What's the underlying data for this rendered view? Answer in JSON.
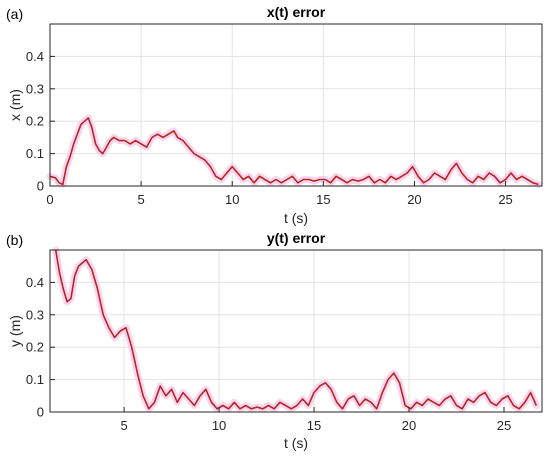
{
  "chart_data": [
    {
      "type": "line",
      "panel_label": "(a)",
      "title": "x(t) error",
      "xlabel": "t (s)",
      "ylabel": "x (m)",
      "xlim": [
        0,
        27
      ],
      "ylim": [
        0,
        0.5
      ],
      "xticks": [
        0,
        5,
        10,
        15,
        20,
        25
      ],
      "yticks": [
        0,
        0.1,
        0.2,
        0.3,
        0.4
      ],
      "ytick_labels": [
        "0",
        "0.1",
        "0.2",
        "0.3",
        "0.4"
      ],
      "grid": true,
      "colors": {
        "line": "#b5281f",
        "halo": "#f7c9ec"
      },
      "series": [
        {
          "x": [
            0,
            0.3,
            0.5,
            0.7,
            0.9,
            1.1,
            1.3,
            1.5,
            1.7,
            1.9,
            2.1,
            2.3,
            2.5,
            2.7,
            2.9,
            3.1,
            3.3,
            3.5,
            3.8,
            4.1,
            4.4,
            4.7,
            5.0,
            5.3,
            5.6,
            5.9,
            6.2,
            6.5,
            6.8,
            7.0,
            7.3,
            7.6,
            7.9,
            8.2,
            8.5,
            8.8,
            9.1,
            9.4,
            9.7,
            10.0,
            10.3,
            10.6,
            10.9,
            11.2,
            11.5,
            11.8,
            12.1,
            12.4,
            12.7,
            13.0,
            13.3,
            13.6,
            13.9,
            14.2,
            14.5,
            14.8,
            15.1,
            15.4,
            15.7,
            16.0,
            16.3,
            16.6,
            16.9,
            17.2,
            17.5,
            17.8,
            18.1,
            18.4,
            18.7,
            19.0,
            19.3,
            19.6,
            19.9,
            20.2,
            20.5,
            20.8,
            21.1,
            21.4,
            21.7,
            22.0,
            22.3,
            22.6,
            22.9,
            23.2,
            23.5,
            23.8,
            24.1,
            24.4,
            24.7,
            25.0,
            25.3,
            25.6,
            25.9,
            26.2,
            26.5,
            26.8
          ],
          "values": [
            0.03,
            0.025,
            0.01,
            0.005,
            0.06,
            0.09,
            0.13,
            0.16,
            0.19,
            0.2,
            0.21,
            0.18,
            0.13,
            0.11,
            0.1,
            0.12,
            0.14,
            0.15,
            0.14,
            0.14,
            0.13,
            0.14,
            0.13,
            0.12,
            0.15,
            0.16,
            0.15,
            0.16,
            0.17,
            0.15,
            0.14,
            0.12,
            0.1,
            0.09,
            0.08,
            0.06,
            0.03,
            0.02,
            0.04,
            0.06,
            0.04,
            0.02,
            0.03,
            0.01,
            0.03,
            0.02,
            0.01,
            0.02,
            0.01,
            0.02,
            0.03,
            0.01,
            0.02,
            0.02,
            0.015,
            0.02,
            0.02,
            0.01,
            0.03,
            0.02,
            0.01,
            0.02,
            0.015,
            0.02,
            0.03,
            0.01,
            0.02,
            0.01,
            0.03,
            0.02,
            0.03,
            0.04,
            0.06,
            0.03,
            0.01,
            0.02,
            0.04,
            0.03,
            0.02,
            0.05,
            0.07,
            0.04,
            0.02,
            0.01,
            0.03,
            0.02,
            0.04,
            0.03,
            0.01,
            0.02,
            0.04,
            0.02,
            0.03,
            0.02,
            0.01,
            0.005
          ]
        }
      ]
    },
    {
      "type": "line",
      "panel_label": "(b)",
      "title": "y(t) error",
      "xlabel": "t (s)",
      "ylabel": "y (m)",
      "xlim": [
        1.1,
        27
      ],
      "ylim": [
        0,
        0.5
      ],
      "xticks": [
        5,
        10,
        15,
        20,
        25
      ],
      "yticks": [
        0,
        0.1,
        0.2,
        0.3,
        0.4
      ],
      "ytick_labels": [
        "0",
        "0.1",
        "0.2",
        "0.3",
        "0.4"
      ],
      "grid": true,
      "colors": {
        "line": "#b5281f",
        "halo": "#f7c9ec"
      },
      "series": [
        {
          "x": [
            1.4,
            1.6,
            1.8,
            2.0,
            2.2,
            2.4,
            2.6,
            2.8,
            3.0,
            3.3,
            3.6,
            3.9,
            4.2,
            4.5,
            4.8,
            5.1,
            5.4,
            5.7,
            6.0,
            6.3,
            6.6,
            6.9,
            7.2,
            7.5,
            7.8,
            8.1,
            8.4,
            8.7,
            9.0,
            9.3,
            9.6,
            9.9,
            10.2,
            10.5,
            10.8,
            11.1,
            11.4,
            11.7,
            12.0,
            12.3,
            12.6,
            12.9,
            13.2,
            13.5,
            13.8,
            14.1,
            14.4,
            14.7,
            15.0,
            15.3,
            15.6,
            15.9,
            16.2,
            16.5,
            16.8,
            17.1,
            17.4,
            17.7,
            18.0,
            18.3,
            18.6,
            18.9,
            19.2,
            19.5,
            19.8,
            20.1,
            20.4,
            20.7,
            21.0,
            21.3,
            21.6,
            21.9,
            22.2,
            22.5,
            22.8,
            23.1,
            23.4,
            23.7,
            24.0,
            24.3,
            24.6,
            24.9,
            25.2,
            25.5,
            25.8,
            26.1,
            26.4,
            26.7
          ],
          "values": [
            0.5,
            0.43,
            0.38,
            0.34,
            0.35,
            0.42,
            0.45,
            0.46,
            0.47,
            0.44,
            0.38,
            0.3,
            0.26,
            0.23,
            0.25,
            0.26,
            0.2,
            0.12,
            0.05,
            0.01,
            0.03,
            0.08,
            0.05,
            0.07,
            0.03,
            0.06,
            0.04,
            0.02,
            0.05,
            0.07,
            0.03,
            0.01,
            0.02,
            0.01,
            0.03,
            0.01,
            0.02,
            0.01,
            0.015,
            0.01,
            0.02,
            0.01,
            0.03,
            0.02,
            0.01,
            0.02,
            0.04,
            0.02,
            0.06,
            0.08,
            0.09,
            0.07,
            0.03,
            0.01,
            0.04,
            0.05,
            0.02,
            0.04,
            0.03,
            0.01,
            0.06,
            0.1,
            0.12,
            0.09,
            0.02,
            0.01,
            0.03,
            0.02,
            0.04,
            0.03,
            0.02,
            0.04,
            0.05,
            0.02,
            0.01,
            0.04,
            0.03,
            0.05,
            0.06,
            0.03,
            0.02,
            0.04,
            0.05,
            0.02,
            0.01,
            0.03,
            0.06,
            0.02
          ]
        }
      ]
    }
  ]
}
